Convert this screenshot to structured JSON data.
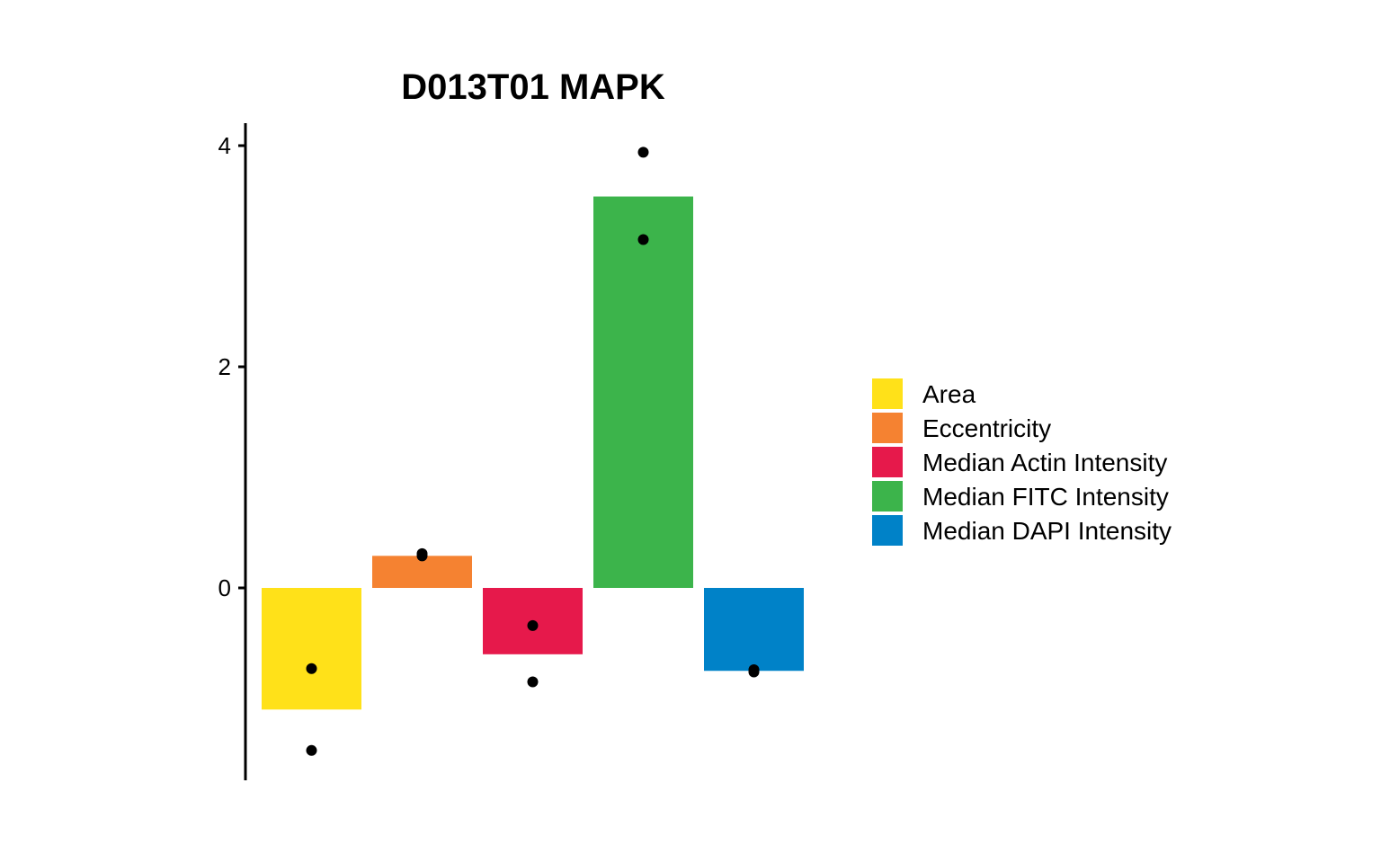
{
  "chart_data": {
    "type": "bar",
    "title": "D013T01 MAPK",
    "xlabel": "",
    "ylabel": "",
    "ylim": [
      -1.75,
      4.2
    ],
    "yticks": [
      0,
      2,
      4
    ],
    "grid": false,
    "legend_position": "right",
    "categories": [
      "Area",
      "Eccentricity",
      "Median Actin Intensity",
      "Median FITC Intensity",
      "Median DAPI Intensity"
    ],
    "colors": [
      "#FFE119",
      "#F58231",
      "#E6194B",
      "#3CB44B",
      "#0082C8"
    ],
    "values": [
      -1.1,
      0.29,
      -0.6,
      3.54,
      -0.75
    ],
    "points": [
      [
        -0.73,
        -1.47
      ],
      [
        0.31,
        0.29
      ],
      [
        -0.34,
        -0.85
      ],
      [
        3.94,
        3.15
      ],
      [
        -0.74,
        -0.76
      ]
    ]
  }
}
